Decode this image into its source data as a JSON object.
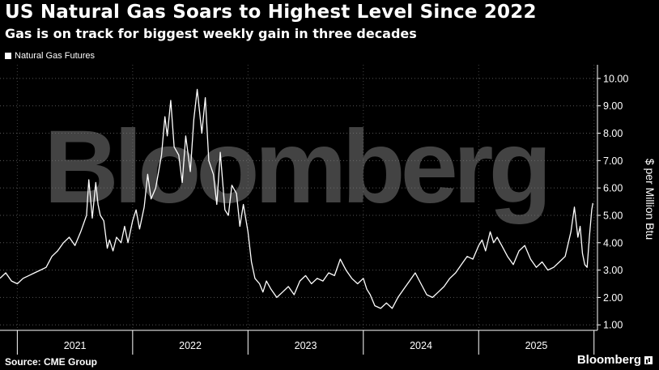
{
  "header": {
    "title": "US Natural Gas Soars to Highest Level Since 2022",
    "subtitle": "Gas is on track for biggest weekly gain in three decades"
  },
  "footer": {
    "source": "Source: CME Group",
    "brand": "Bloomberg"
  },
  "watermark": "Bloomberg",
  "colors": {
    "background": "#000000",
    "line": "#ffffff",
    "grid": "#555555"
  },
  "chart_data": {
    "type": "line",
    "title": "US Natural Gas Soars to Highest Level Since 2022",
    "subtitle": "Gas is on track for biggest weekly gain in three decades",
    "ylabel": "$ per Million Btu",
    "xlabel": "",
    "y_axis_side": "right",
    "ylim": [
      0.8,
      10.5
    ],
    "yticks": [
      1.0,
      2.0,
      3.0,
      4.0,
      5.0,
      6.0,
      7.0,
      8.0,
      9.0,
      10.0
    ],
    "ytick_labels": [
      "1.00",
      "2.00",
      "3.00",
      "4.00",
      "5.00",
      "6.00",
      "7.00",
      "8.00",
      "9.00",
      "10.00"
    ],
    "xlim": [
      2020.85,
      2026.03
    ],
    "year_labels": [
      "2021",
      "2022",
      "2023",
      "2024",
      "2025"
    ],
    "grid": true,
    "legend_position": "top-left",
    "series": [
      {
        "name": "Natural Gas Futures",
        "x": [
          2020.85,
          2020.9,
          2020.95,
          2021.0,
          2021.05,
          2021.1,
          2021.15,
          2021.2,
          2021.25,
          2021.3,
          2021.35,
          2021.4,
          2021.45,
          2021.5,
          2021.55,
          2021.6,
          2021.62,
          2021.65,
          2021.68,
          2021.7,
          2021.72,
          2021.75,
          2021.78,
          2021.8,
          2021.83,
          2021.86,
          2021.9,
          2021.93,
          2021.96,
          2022.0,
          2022.03,
          2022.06,
          2022.1,
          2022.13,
          2022.16,
          2022.2,
          2022.25,
          2022.28,
          2022.3,
          2022.33,
          2022.36,
          2022.4,
          2022.43,
          2022.46,
          2022.5,
          2022.53,
          2022.56,
          2022.6,
          2022.63,
          2022.66,
          2022.7,
          2022.73,
          2022.76,
          2022.8,
          2022.83,
          2022.86,
          2022.9,
          2022.93,
          2022.96,
          2023.0,
          2023.03,
          2023.06,
          2023.1,
          2023.13,
          2023.16,
          2023.2,
          2023.25,
          2023.3,
          2023.35,
          2023.4,
          2023.45,
          2023.5,
          2023.55,
          2023.6,
          2023.65,
          2023.7,
          2023.75,
          2023.8,
          2023.85,
          2023.9,
          2023.95,
          2024.0,
          2024.03,
          2024.06,
          2024.1,
          2024.15,
          2024.2,
          2024.25,
          2024.3,
          2024.35,
          2024.4,
          2024.45,
          2024.5,
          2024.55,
          2024.6,
          2024.65,
          2024.7,
          2024.75,
          2024.8,
          2024.85,
          2024.9,
          2024.95,
          2025.0,
          2025.03,
          2025.06,
          2025.1,
          2025.13,
          2025.16,
          2025.2,
          2025.25,
          2025.3,
          2025.35,
          2025.4,
          2025.45,
          2025.5,
          2025.55,
          2025.6,
          2025.65,
          2025.7,
          2025.75,
          2025.8,
          2025.83,
          2025.86,
          2025.88,
          2025.9,
          2025.92,
          2025.94,
          2025.96,
          2025.98,
          2025.99
        ],
        "values": [
          2.7,
          2.9,
          2.6,
          2.5,
          2.7,
          2.8,
          2.9,
          3.0,
          3.1,
          3.5,
          3.7,
          4.0,
          4.2,
          3.9,
          4.4,
          5.0,
          6.3,
          4.9,
          6.2,
          5.4,
          5.0,
          4.8,
          3.8,
          4.1,
          3.7,
          4.2,
          4.0,
          4.6,
          4.0,
          4.8,
          5.2,
          4.5,
          5.3,
          6.5,
          5.6,
          6.0,
          7.2,
          8.6,
          7.9,
          9.2,
          7.5,
          7.2,
          6.2,
          7.9,
          6.6,
          8.5,
          9.6,
          8.0,
          9.3,
          7.0,
          6.5,
          5.4,
          7.3,
          5.2,
          5.0,
          6.1,
          5.8,
          4.6,
          5.4,
          4.4,
          3.3,
          2.7,
          2.5,
          2.2,
          2.6,
          2.3,
          2.0,
          2.2,
          2.4,
          2.1,
          2.6,
          2.8,
          2.5,
          2.7,
          2.6,
          2.9,
          2.8,
          3.4,
          3.0,
          2.7,
          2.5,
          2.7,
          2.3,
          2.1,
          1.7,
          1.6,
          1.8,
          1.6,
          2.0,
          2.3,
          2.6,
          2.9,
          2.5,
          2.1,
          2.0,
          2.2,
          2.4,
          2.7,
          2.9,
          3.2,
          3.5,
          3.4,
          3.9,
          4.1,
          3.7,
          4.4,
          4.0,
          4.2,
          3.9,
          3.5,
          3.2,
          3.7,
          3.9,
          3.4,
          3.1,
          3.3,
          3.0,
          3.1,
          3.3,
          3.5,
          4.4,
          5.3,
          4.2,
          4.6,
          3.6,
          3.2,
          3.1,
          4.2,
          5.2,
          5.45
        ]
      }
    ]
  }
}
